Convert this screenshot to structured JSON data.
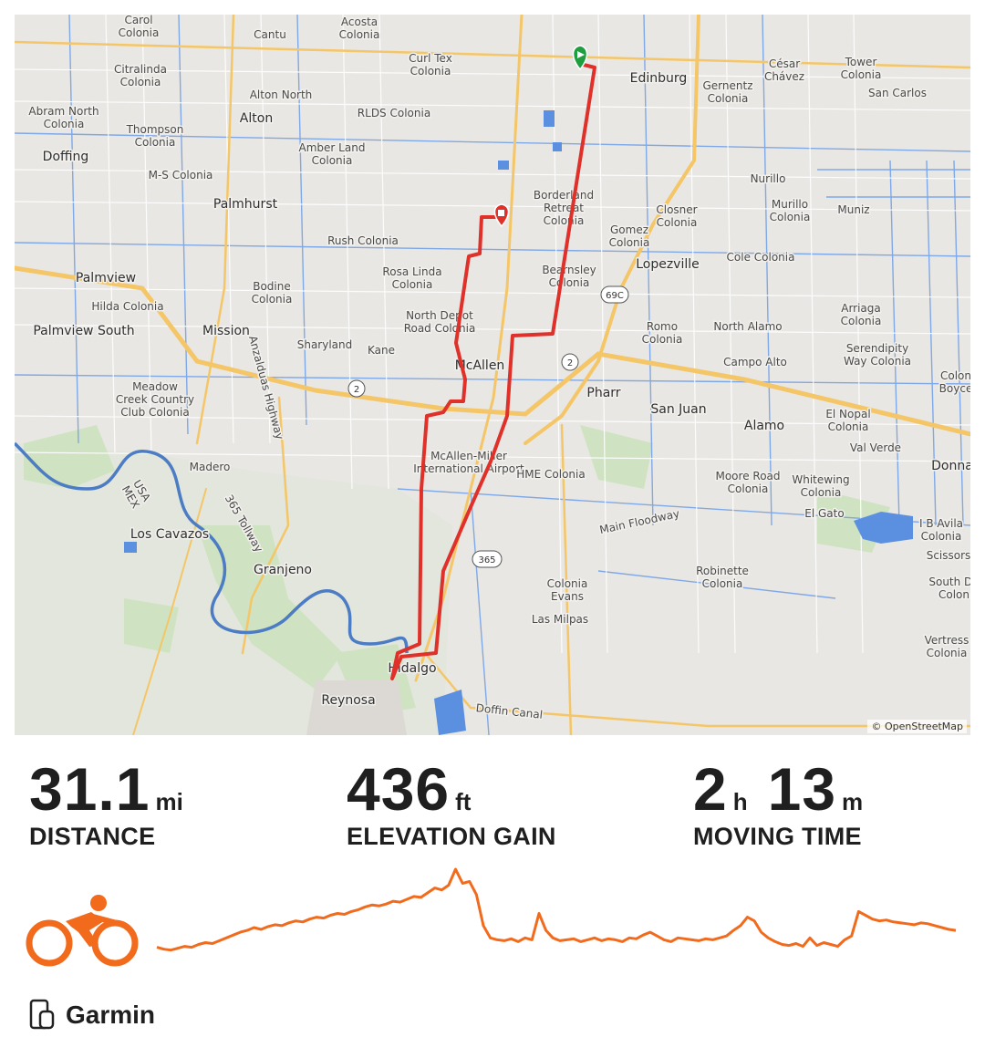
{
  "map": {
    "attribution": "© OpenStreetMap",
    "route_color": "#e0302a",
    "start_marker_color": "#1e9e3e",
    "end_marker_color": "#e0302a",
    "labels": {
      "carol_colonia": "Carol\nColonia",
      "acosta_colonia": "Acosta\nColonia",
      "cantu": "Cantu",
      "curl_tex": "Curl Tex\nColonia",
      "edinburg": "Edinburg",
      "cesar_chavez": "César\nChávez",
      "tower_colonia": "Tower\nColonia",
      "gernentz": "Gernentz\nColonia",
      "san_carlos": "San Carlos",
      "citralinda": "Citralinda\nColonia",
      "alton_north": "Alton North",
      "abram_north": "Abram North\nColonia",
      "rlds": "RLDS Colonia",
      "alton": "Alton",
      "thompson": "Thompson\nColonia",
      "doffing": "Doffing",
      "amber_land": "Amber Land\nColonia",
      "ms_colonia": "M-S Colonia",
      "nurillo": "Nurillo",
      "palmhurst": "Palmhurst",
      "borderland": "Borderland\nRetreat\nColonia",
      "murillo": "Murillo\nColonia",
      "muniz": "Muniz",
      "closner": "Closner\nColonia",
      "rush": "Rush Colonia",
      "gomez": "Gomez\nColonia",
      "palmview": "Palmview",
      "lopezville": "Lopezville",
      "cole": "Cole Colonia",
      "rosa_linda": "Rosa Linda\nColonia",
      "bearnsley": "Bearnsley\nColonia",
      "bodine": "Bodine\nColonia",
      "hilda": "Hilda Colonia",
      "arriaga": "Arriaga\nColonia",
      "north_depot": "North Depot\nRoad Colonia",
      "north_alamo": "North Alamo",
      "palmview_south": "Palmview South",
      "mission": "Mission",
      "romo": "Romo\nColonia",
      "sharyland": "Sharyland",
      "kane": "Kane",
      "mcallen": "McAllen",
      "serendipity": "Serendipity\nWay Colonia",
      "campo_alto": "Campo Alto",
      "colon_boyce": "Colon\nBoyce",
      "meadow_creek": "Meadow\nCreek Country\nClub Colonia",
      "pharr": "Pharr",
      "san_juan": "San Juan",
      "el_nopal": "El Nopal\nColonia",
      "alamo": "Alamo",
      "val_verde": "Val Verde",
      "madero": "Madero",
      "anzalduas": "Anzalduas Highway",
      "mcallen_miller": "McAllen-Miller\nInternational Airport",
      "hme": "HME Colonia",
      "moore_road": "Moore Road\nColonia",
      "whitewing": "Whitewing\nColonia",
      "donna": "Donna",
      "usa_mex": "USA\nMEX",
      "tollway": "365 Tollway",
      "main_floodway": "Main Floodway",
      "el_gato": "El Gato",
      "ib_avila": "I B Avila\nColonia",
      "los_cavazos": "Los Cavazos",
      "scissors": "Scissors",
      "granjeno": "Granjeno",
      "robinette": "Robinette\nColonia",
      "south_donna": "South Do\nColon",
      "colonia_evans": "Colonia\nEvans",
      "las_milpas": "Las Milpas",
      "vertress": "Vertress\nColonia",
      "hidalgo": "Hidalgo",
      "reynosa": "Reynosa",
      "doffin_canal": "Doffin Canal"
    },
    "shields": {
      "s69c": "69C",
      "s2a": "2",
      "s2b": "2",
      "s365": "365"
    }
  },
  "stats": {
    "distance": {
      "value": "31.1",
      "unit": "mi",
      "label": "DISTANCE"
    },
    "elevation": {
      "value": "436",
      "unit": "ft",
      "label": "ELEVATION GAIN"
    },
    "moving_time": {
      "hours": "2",
      "h_unit": "h",
      "minutes": "13",
      "m_unit": "m",
      "label": "MOVING TIME"
    }
  },
  "activity_icon": "cycling-icon",
  "profile_color": "#f26b1d",
  "elevation_profile": [
    12,
    10,
    9,
    11,
    13,
    12,
    15,
    17,
    16,
    19,
    22,
    25,
    28,
    30,
    33,
    31,
    34,
    36,
    35,
    38,
    40,
    39,
    42,
    44,
    43,
    46,
    48,
    47,
    50,
    52,
    55,
    57,
    56,
    58,
    61,
    60,
    63,
    66,
    65,
    70,
    75,
    73,
    78,
    95,
    80,
    82,
    68,
    35,
    22,
    20,
    19,
    21,
    18,
    22,
    20,
    48,
    30,
    22,
    19,
    20,
    21,
    18,
    20,
    22,
    19,
    21,
    20,
    18,
    22,
    21,
    25,
    28,
    24,
    20,
    18,
    22,
    21,
    20,
    19,
    21,
    20,
    22,
    24,
    30,
    35,
    44,
    40,
    28,
    22,
    18,
    15,
    14,
    16,
    13,
    22,
    14,
    17,
    15,
    13,
    20,
    24,
    50,
    46,
    42,
    40,
    41,
    39,
    38,
    37,
    36,
    38,
    37,
    35,
    33,
    31,
    30
  ]
}
